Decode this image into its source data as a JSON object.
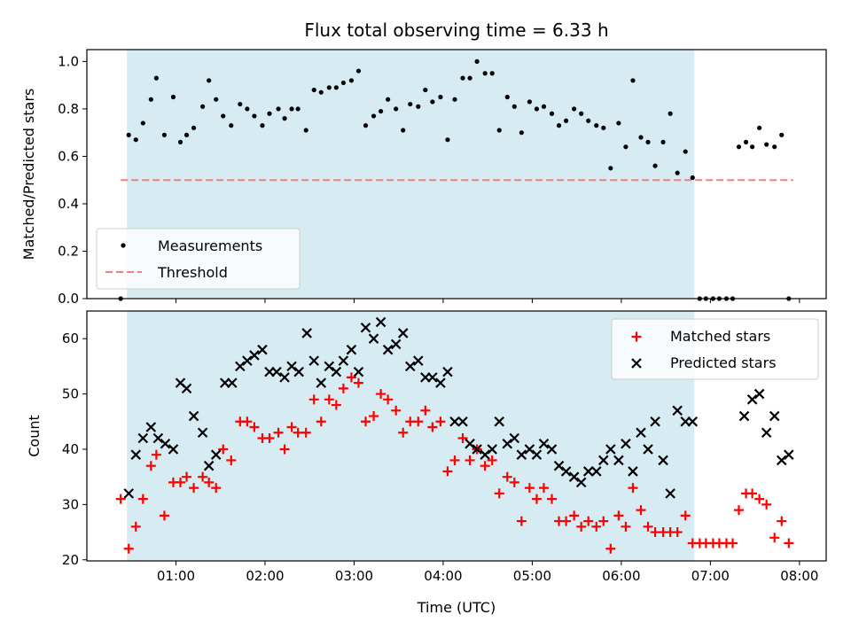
{
  "chart_data": [
    {
      "type": "scatter",
      "title": "Flux total observing time = 6.33 h",
      "xlabel": "",
      "ylabel": "Matched/Predicted stars",
      "xlim_hours": [
        0.0,
        8.3
      ],
      "ylim": [
        0.0,
        1.05
      ],
      "yticks": [
        0.0,
        0.2,
        0.4,
        0.6,
        0.8,
        1.0
      ],
      "ytick_labels": [
        "0.0",
        "0.2",
        "0.4",
        "0.6",
        "0.8",
        "1.0"
      ],
      "observing_window_hours": [
        0.45,
        6.82
      ],
      "threshold": {
        "label": "Threshold",
        "value": 0.5,
        "x_range_hours": [
          0.38,
          7.93
        ],
        "color": "#f08080"
      },
      "legend": [
        {
          "label": "Measurements",
          "marker": "dot"
        },
        {
          "label": "Threshold",
          "marker": "dashed-line"
        }
      ],
      "legend_position": "lower-left",
      "series": [
        {
          "name": "Measurements",
          "color": "#000000",
          "x": [
            0.38,
            0.47,
            0.55,
            0.63,
            0.72,
            0.78,
            0.87,
            0.97,
            1.05,
            1.12,
            1.2,
            1.3,
            1.37,
            1.45,
            1.53,
            1.62,
            1.72,
            1.8,
            1.88,
            1.97,
            2.05,
            2.15,
            2.22,
            2.3,
            2.37,
            2.46,
            2.55,
            2.63,
            2.72,
            2.8,
            2.88,
            2.97,
            3.05,
            3.13,
            3.22,
            3.3,
            3.38,
            3.47,
            3.55,
            3.63,
            3.72,
            3.8,
            3.88,
            3.97,
            4.05,
            4.13,
            4.22,
            4.3,
            4.38,
            4.47,
            4.55,
            4.63,
            4.72,
            4.8,
            4.88,
            4.97,
            5.05,
            5.13,
            5.22,
            5.3,
            5.38,
            5.47,
            5.55,
            5.63,
            5.72,
            5.8,
            5.88,
            5.97,
            6.05,
            6.13,
            6.22,
            6.3,
            6.38,
            6.47,
            6.55,
            6.63,
            6.72,
            6.8,
            6.88,
            6.95,
            7.03,
            7.1,
            7.18,
            7.25,
            7.32,
            7.4,
            7.47,
            7.55,
            7.63,
            7.72,
            7.8,
            7.88
          ],
          "y": [
            0.0,
            0.69,
            0.67,
            0.74,
            0.84,
            0.93,
            0.69,
            0.85,
            0.66,
            0.69,
            0.72,
            0.81,
            0.92,
            0.84,
            0.77,
            0.73,
            0.82,
            0.8,
            0.77,
            0.73,
            0.78,
            0.8,
            0.76,
            0.8,
            0.8,
            0.71,
            0.88,
            0.87,
            0.89,
            0.89,
            0.91,
            0.92,
            0.96,
            0.73,
            0.77,
            0.79,
            0.84,
            0.8,
            0.71,
            0.82,
            0.81,
            0.88,
            0.83,
            0.85,
            0.67,
            0.84,
            0.93,
            0.93,
            1.0,
            0.95,
            0.95,
            0.71,
            0.85,
            0.81,
            0.7,
            0.83,
            0.8,
            0.81,
            0.78,
            0.73,
            0.75,
            0.8,
            0.78,
            0.75,
            0.73,
            0.72,
            0.55,
            0.74,
            0.64,
            0.92,
            0.68,
            0.66,
            0.56,
            0.66,
            0.78,
            0.53,
            0.62,
            0.51,
            0.0,
            0.0,
            0.0,
            0.0,
            0.0,
            0.0,
            0.64,
            0.66,
            0.64,
            0.72,
            0.65,
            0.64,
            0.69,
            0.0
          ]
        }
      ]
    },
    {
      "type": "scatter",
      "title": "",
      "xlabel": "Time (UTC)",
      "ylabel": "Count",
      "xlim_hours": [
        0.0,
        8.3
      ],
      "ylim": [
        19.8,
        65.0
      ],
      "yticks": [
        20,
        30,
        40,
        50,
        60
      ],
      "ytick_labels": [
        "20",
        "30",
        "40",
        "50",
        "60"
      ],
      "xticks_hours": [
        1,
        2,
        3,
        4,
        5,
        6,
        7,
        8
      ],
      "xtick_labels": [
        "01:00",
        "02:00",
        "03:00",
        "04:00",
        "05:00",
        "06:00",
        "07:00",
        "08:00"
      ],
      "observing_window_hours": [
        0.45,
        6.82
      ],
      "legend": [
        {
          "label": "Matched stars",
          "marker": "plus"
        },
        {
          "label": "Predicted stars",
          "marker": "x"
        }
      ],
      "legend_position": "upper-right",
      "series": [
        {
          "name": "Matched stars",
          "color": "#ff0000",
          "marker": "plus",
          "x": [
            0.38,
            0.47,
            0.55,
            0.63,
            0.72,
            0.78,
            0.87,
            0.97,
            1.05,
            1.12,
            1.2,
            1.3,
            1.37,
            1.45,
            1.53,
            1.62,
            1.72,
            1.8,
            1.88,
            1.97,
            2.05,
            2.15,
            2.22,
            2.3,
            2.37,
            2.46,
            2.55,
            2.63,
            2.72,
            2.8,
            2.88,
            2.97,
            3.05,
            3.13,
            3.22,
            3.3,
            3.38,
            3.47,
            3.55,
            3.63,
            3.72,
            3.8,
            3.88,
            3.97,
            4.05,
            4.13,
            4.22,
            4.3,
            4.38,
            4.47,
            4.55,
            4.63,
            4.72,
            4.8,
            4.88,
            4.97,
            5.05,
            5.13,
            5.22,
            5.3,
            5.38,
            5.47,
            5.55,
            5.63,
            5.72,
            5.8,
            5.88,
            5.97,
            6.05,
            6.13,
            6.22,
            6.3,
            6.38,
            6.47,
            6.55,
            6.63,
            6.72,
            6.8,
            6.88,
            6.95,
            7.03,
            7.1,
            7.18,
            7.25,
            7.32,
            7.4,
            7.47,
            7.55,
            7.63,
            7.72,
            7.8,
            7.88
          ],
          "y": [
            31,
            22,
            26,
            31,
            37,
            39,
            28,
            34,
            34,
            35,
            33,
            35,
            34,
            33,
            40,
            38,
            45,
            45,
            44,
            42,
            42,
            43,
            40,
            44,
            43,
            43,
            49,
            45,
            49,
            48,
            51,
            53,
            52,
            45,
            46,
            50,
            49,
            47,
            43,
            45,
            45,
            47,
            44,
            45,
            36,
            38,
            42,
            38,
            40,
            37,
            38,
            32,
            35,
            34,
            27,
            33,
            31,
            33,
            31,
            27,
            27,
            28,
            26,
            27,
            26,
            27,
            22,
            28,
            26,
            33,
            29,
            26,
            25,
            25,
            25,
            25,
            28,
            23,
            23,
            23,
            23,
            23,
            23,
            23,
            29,
            32,
            32,
            31,
            30,
            24,
            27,
            23
          ]
        },
        {
          "name": "Predicted stars",
          "color": "#000000",
          "marker": "x",
          "x": [
            0.47,
            0.55,
            0.63,
            0.72,
            0.8,
            0.88,
            0.97,
            1.05,
            1.12,
            1.2,
            1.3,
            1.37,
            1.45,
            1.55,
            1.63,
            1.72,
            1.8,
            1.88,
            1.97,
            2.05,
            2.13,
            2.22,
            2.3,
            2.38,
            2.47,
            2.55,
            2.63,
            2.72,
            2.8,
            2.88,
            2.97,
            3.05,
            3.13,
            3.22,
            3.3,
            3.38,
            3.47,
            3.55,
            3.63,
            3.72,
            3.8,
            3.88,
            3.97,
            4.05,
            4.13,
            4.22,
            4.3,
            4.38,
            4.47,
            4.55,
            4.63,
            4.72,
            4.8,
            4.88,
            4.97,
            5.05,
            5.13,
            5.22,
            5.3,
            5.38,
            5.47,
            5.55,
            5.63,
            5.72,
            5.8,
            5.88,
            5.97,
            6.05,
            6.13,
            6.22,
            6.3,
            6.38,
            6.47,
            6.55,
            6.63,
            6.72,
            6.8,
            7.38,
            7.47,
            7.55,
            7.63,
            7.72,
            7.8,
            7.88
          ],
          "y": [
            32,
            39,
            42,
            44,
            42,
            41,
            40,
            52,
            51,
            46,
            43,
            37,
            39,
            52,
            52,
            55,
            56,
            57,
            58,
            54,
            54,
            53,
            55,
            54,
            61,
            56,
            52,
            55,
            54,
            56,
            58,
            54,
            62,
            60,
            63,
            58,
            59,
            61,
            55,
            56,
            53,
            53,
            52,
            54,
            45,
            45,
            41,
            40,
            39,
            40,
            45,
            41,
            42,
            39,
            40,
            39,
            41,
            40,
            37,
            36,
            35,
            34,
            36,
            36,
            38,
            40,
            38,
            41,
            36,
            43,
            40,
            45,
            38,
            32,
            47,
            45,
            45,
            46,
            49,
            50,
            43,
            46,
            38,
            39
          ]
        }
      ]
    }
  ]
}
